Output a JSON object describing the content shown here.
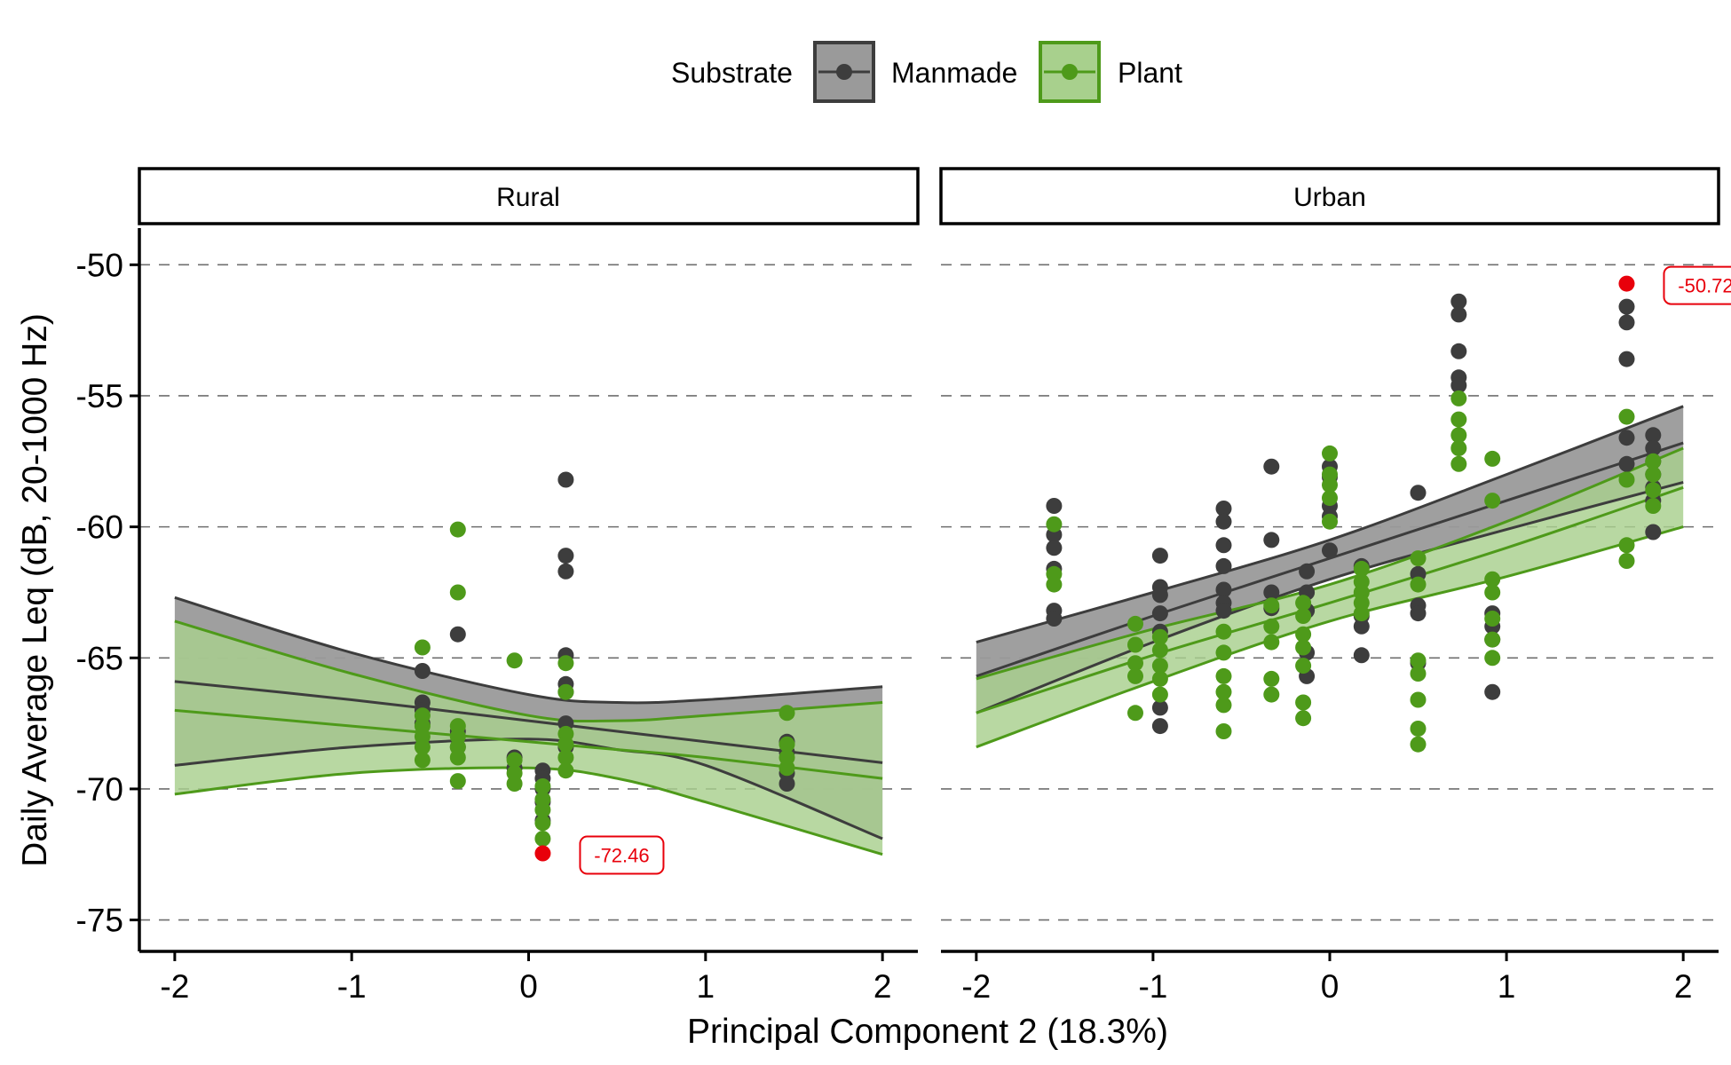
{
  "chart_data": {
    "type": "scatter",
    "title": "",
    "xlabel": "Principal Component 2 (18.3%)",
    "ylabel": "Daily Average Leq (dB, 20-1000 Hz)",
    "xlim": [
      -2.2,
      2.2
    ],
    "ylim": [
      -76.2,
      -48.6
    ],
    "x_ticks": [
      "-2",
      "-1",
      "0",
      "1",
      "2"
    ],
    "y_ticks": [
      "-50",
      "-55",
      "-60",
      "-65",
      "-70",
      "-75"
    ],
    "y_tick_values": [
      -50,
      -55,
      -60,
      -65,
      -70,
      -75
    ],
    "grid": "horizontal dashed",
    "legend": {
      "title": "Substrate",
      "position": "top",
      "entries": [
        {
          "name": "Manmade",
          "color": "#3d3d3d",
          "fill": "#9a9a9a"
        },
        {
          "name": "Plant",
          "color": "#4e9a1a",
          "fill": "#a8d08d"
        }
      ]
    },
    "panels": [
      {
        "name": "Rural",
        "points": [
          {
            "series": "Manmade",
            "x": -0.6,
            "y": [
              -65.5,
              -66.7,
              -67.0,
              -67.5
            ]
          },
          {
            "series": "Manmade",
            "x": -0.4,
            "y": [
              -64.1,
              -67.8,
              -68.4
            ]
          },
          {
            "series": "Manmade",
            "x": -0.08,
            "y": [
              -68.8,
              -69.2
            ]
          },
          {
            "series": "Manmade",
            "x": 0.08,
            "y": [
              -69.3,
              -69.6,
              -70.0,
              -70.5,
              -71.2
            ]
          },
          {
            "series": "Manmade",
            "x": 0.21,
            "y": [
              -58.2,
              -61.1,
              -61.7,
              -64.9,
              -66.0,
              -66.3,
              -67.5,
              -68.4
            ]
          },
          {
            "series": "Manmade",
            "x": 1.46,
            "y": [
              -68.2,
              -68.6,
              -69.4,
              -69.8
            ]
          },
          {
            "series": "Plant",
            "x": -0.6,
            "y": [
              -64.6,
              -67.2,
              -67.6,
              -68.0,
              -68.4,
              -68.9
            ]
          },
          {
            "series": "Plant",
            "x": -0.4,
            "y": [
              -60.1,
              -62.5,
              -67.6,
              -68.0,
              -68.4,
              -68.8,
              -69.7
            ]
          },
          {
            "series": "Plant",
            "x": -0.08,
            "y": [
              -65.1,
              -68.9,
              -69.4,
              -69.8
            ]
          },
          {
            "series": "Plant",
            "x": 0.08,
            "y": [
              -69.9,
              -70.4,
              -70.8,
              -71.3,
              -71.9
            ]
          },
          {
            "series": "Plant",
            "x": 0.21,
            "y": [
              -65.2,
              -66.3,
              -67.9,
              -68.3,
              -68.8,
              -69.3
            ]
          },
          {
            "series": "Plant",
            "x": 1.46,
            "y": [
              -67.1,
              -68.3,
              -68.8,
              -69.2
            ]
          }
        ],
        "fits": [
          {
            "series": "Manmade",
            "x": [
              -2,
              -1,
              0,
              0.5,
              1,
              2
            ],
            "y": [
              -65.9,
              -66.6,
              -67.4,
              -67.8,
              -68.2,
              -69.0
            ],
            "lower": [
              -69.1,
              -68.4,
              -68.1,
              -68.5,
              -69.1,
              -71.9
            ],
            "upper": [
              -62.7,
              -64.8,
              -66.4,
              -66.7,
              -66.6,
              -66.1
            ]
          },
          {
            "series": "Plant",
            "x": [
              -2,
              -1,
              0,
              0.5,
              1,
              2
            ],
            "y": [
              -67.0,
              -67.6,
              -68.2,
              -68.5,
              -68.8,
              -69.6
            ],
            "lower": [
              -70.2,
              -69.4,
              -69.2,
              -69.6,
              -70.5,
              -72.5
            ],
            "upper": [
              -63.6,
              -65.6,
              -67.2,
              -67.4,
              -67.2,
              -66.7
            ]
          }
        ],
        "callout": {
          "x": 0.08,
          "y": -72.46,
          "label": "-72.46",
          "color": "#e8000b"
        }
      },
      {
        "name": "Urban",
        "points": [
          {
            "series": "Manmade",
            "x": -1.56,
            "y": [
              -59.2,
              -60.3,
              -60.8,
              -61.6,
              -63.2,
              -63.5
            ]
          },
          {
            "series": "Manmade",
            "x": -0.96,
            "y": [
              -61.1,
              -62.3,
              -62.6,
              -63.3,
              -64.0,
              -66.9,
              -67.6
            ]
          },
          {
            "series": "Manmade",
            "x": -0.6,
            "y": [
              -59.3,
              -59.8,
              -60.7,
              -61.5,
              -62.4,
              -62.9,
              -63.2
            ]
          },
          {
            "series": "Manmade",
            "x": -0.33,
            "y": [
              -57.7,
              -60.5,
              -62.5,
              -63.1
            ]
          },
          {
            "series": "Manmade",
            "x": -0.13,
            "y": [
              -61.7,
              -62.5,
              -63.2,
              -64.8,
              -65.7
            ]
          },
          {
            "series": "Manmade",
            "x": 0.0,
            "y": [
              -57.7,
              -58.1,
              -59.2,
              -59.6,
              -60.9
            ]
          },
          {
            "series": "Manmade",
            "x": 0.18,
            "y": [
              -61.5,
              -63.4,
              -63.8,
              -64.9
            ]
          },
          {
            "series": "Manmade",
            "x": 0.5,
            "y": [
              -58.7,
              -61.8,
              -63.0,
              -63.3,
              -65.2
            ]
          },
          {
            "series": "Manmade",
            "x": 0.73,
            "y": [
              -51.4,
              -51.9,
              -53.3,
              -54.3,
              -54.6
            ]
          },
          {
            "series": "Manmade",
            "x": 0.92,
            "y": [
              -63.3,
              -63.8,
              -64.3,
              -66.3
            ]
          },
          {
            "series": "Manmade",
            "x": 1.68,
            "y": [
              -51.6,
              -52.2,
              -53.6,
              -56.6,
              -57.6
            ]
          },
          {
            "series": "Manmade",
            "x": 1.83,
            "y": [
              -56.5,
              -57.0,
              -57.5,
              -58.0,
              -58.5,
              -59.0,
              -60.2
            ]
          },
          {
            "series": "Plant",
            "x": -1.56,
            "y": [
              -59.9,
              -61.8,
              -62.2
            ]
          },
          {
            "series": "Plant",
            "x": -1.1,
            "y": [
              -63.7,
              -64.5,
              -65.2,
              -65.7,
              -67.1
            ]
          },
          {
            "series": "Plant",
            "x": -0.96,
            "y": [
              -64.2,
              -64.7,
              -65.3,
              -65.8,
              -66.4
            ]
          },
          {
            "series": "Plant",
            "x": -0.6,
            "y": [
              -64.0,
              -64.8,
              -65.7,
              -66.3,
              -66.8,
              -67.8
            ]
          },
          {
            "series": "Plant",
            "x": -0.33,
            "y": [
              -63.0,
              -63.8,
              -64.4,
              -65.8,
              -66.4
            ]
          },
          {
            "series": "Plant",
            "x": -0.15,
            "y": [
              -62.9,
              -63.4,
              -64.1,
              -64.6,
              -65.3,
              -66.7,
              -67.3
            ]
          },
          {
            "series": "Plant",
            "x": 0.0,
            "y": [
              -57.2,
              -58.0,
              -58.4,
              -58.9,
              -59.8
            ]
          },
          {
            "series": "Plant",
            "x": 0.18,
            "y": [
              -61.6,
              -62.1,
              -62.5,
              -62.9,
              -63.3
            ]
          },
          {
            "series": "Plant",
            "x": 0.5,
            "y": [
              -61.2,
              -62.2,
              -65.1,
              -65.6,
              -66.6,
              -67.7,
              -68.3
            ]
          },
          {
            "series": "Plant",
            "x": 0.73,
            "y": [
              -55.1,
              -55.9,
              -56.5,
              -57.0,
              -57.6
            ]
          },
          {
            "series": "Plant",
            "x": 0.92,
            "y": [
              -57.4,
              -59.0,
              -62.0,
              -62.5,
              -63.5,
              -64.3,
              -65.0
            ]
          },
          {
            "series": "Plant",
            "x": 1.68,
            "y": [
              -55.8,
              -58.2,
              -60.7,
              -61.3
            ]
          },
          {
            "series": "Plant",
            "x": 1.83,
            "y": [
              -57.5,
              -58.0,
              -58.6,
              -59.2
            ]
          }
        ],
        "fits": [
          {
            "series": "Manmade",
            "x": [
              -2,
              -1,
              0,
              1,
              2
            ],
            "y": [
              -65.7,
              -63.4,
              -61.2,
              -59.0,
              -56.8
            ],
            "lower": [
              -67.1,
              -64.4,
              -62.0,
              -60.1,
              -58.3
            ],
            "upper": [
              -64.4,
              -62.5,
              -60.5,
              -58.0,
              -55.4
            ]
          },
          {
            "series": "Plant",
            "x": [
              -2,
              -1,
              0,
              1,
              2
            ],
            "y": [
              -67.1,
              -64.9,
              -62.9,
              -60.8,
              -58.5
            ],
            "lower": [
              -68.4,
              -65.9,
              -63.6,
              -61.9,
              -60.0
            ],
            "upper": [
              -65.8,
              -63.9,
              -62.2,
              -59.8,
              -57.0
            ]
          }
        ],
        "callout": {
          "x": 1.68,
          "y": -50.72,
          "label": "-50.72",
          "color": "#e8000b"
        }
      }
    ]
  }
}
